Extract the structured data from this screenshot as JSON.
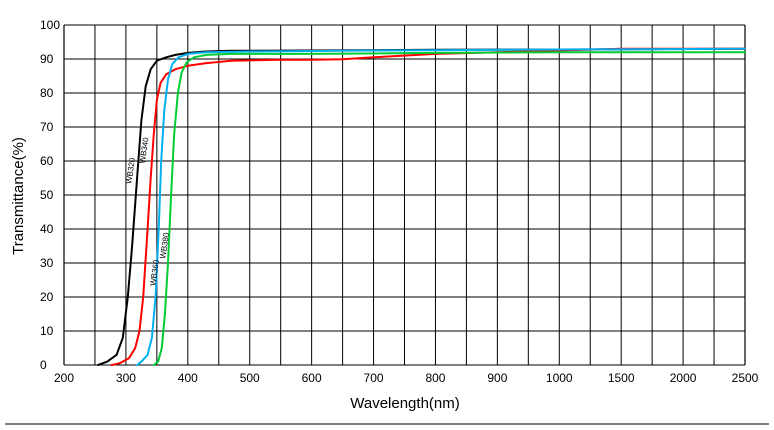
{
  "chart_data": {
    "type": "line",
    "xlabel": "Wavelength(nm)",
    "ylabel": "Transmittance(%)",
    "x_ticks": [
      "200",
      "300",
      "400",
      "500",
      "600",
      "700",
      "800",
      "900",
      "1000",
      "1500",
      "2000",
      "2500"
    ],
    "y_ticks": [
      "0",
      "10",
      "20",
      "30",
      "40",
      "50",
      "60",
      "70",
      "80",
      "90",
      "100"
    ],
    "ylim": [
      0,
      100
    ],
    "grid": true,
    "series": [
      {
        "name": "WB320",
        "color": "#000000",
        "points": [
          [
            255,
            0
          ],
          [
            270,
            1
          ],
          [
            285,
            3
          ],
          [
            295,
            8
          ],
          [
            303,
            20
          ],
          [
            310,
            35
          ],
          [
            318,
            55
          ],
          [
            325,
            72
          ],
          [
            332,
            82
          ],
          [
            340,
            87
          ],
          [
            350,
            89.5
          ],
          [
            365,
            90.5
          ],
          [
            380,
            91.2
          ],
          [
            400,
            91.8
          ],
          [
            430,
            92.2
          ],
          [
            470,
            92.4
          ],
          [
            600,
            92.5
          ],
          [
            800,
            92.7
          ],
          [
            1000,
            92.8
          ],
          [
            2500,
            93
          ]
        ]
      },
      {
        "name": "WB340",
        "color": "#ff0000",
        "points": [
          [
            277,
            0
          ],
          [
            290,
            0.5
          ],
          [
            305,
            2
          ],
          [
            315,
            5
          ],
          [
            322,
            10
          ],
          [
            328,
            20
          ],
          [
            335,
            40
          ],
          [
            340,
            55
          ],
          [
            345,
            68
          ],
          [
            350,
            78
          ],
          [
            356,
            83
          ],
          [
            365,
            85.5
          ],
          [
            380,
            87
          ],
          [
            400,
            88
          ],
          [
            430,
            88.8
          ],
          [
            470,
            89.5
          ],
          [
            550,
            89.8
          ],
          [
            600,
            89.8
          ],
          [
            650,
            89.9
          ],
          [
            700,
            90.5
          ],
          [
            800,
            91.5
          ],
          [
            900,
            92
          ],
          [
            1000,
            92.5
          ],
          [
            1500,
            93
          ],
          [
            2500,
            93
          ]
        ]
      },
      {
        "name": "WB360",
        "color": "#00b0f0",
        "points": [
          [
            318,
            0
          ],
          [
            325,
            1
          ],
          [
            335,
            3
          ],
          [
            342,
            8
          ],
          [
            348,
            20
          ],
          [
            353,
            40
          ],
          [
            357,
            60
          ],
          [
            362,
            75
          ],
          [
            368,
            84
          ],
          [
            375,
            88.5
          ],
          [
            385,
            90.5
          ],
          [
            400,
            91.5
          ],
          [
            430,
            92
          ],
          [
            500,
            92.2
          ],
          [
            700,
            92.5
          ],
          [
            1000,
            92.8
          ],
          [
            2500,
            93
          ]
        ]
      },
      {
        "name": "WB380",
        "color": "#00cc33",
        "points": [
          [
            345,
            0
          ],
          [
            352,
            1
          ],
          [
            358,
            5
          ],
          [
            363,
            15
          ],
          [
            368,
            30
          ],
          [
            373,
            50
          ],
          [
            378,
            68
          ],
          [
            384,
            80
          ],
          [
            390,
            86
          ],
          [
            398,
            89
          ],
          [
            410,
            90.5
          ],
          [
            430,
            91.2
          ],
          [
            470,
            91.5
          ],
          [
            600,
            91.5
          ],
          [
            800,
            91.8
          ],
          [
            1000,
            92
          ],
          [
            1500,
            92
          ],
          [
            2500,
            92
          ]
        ]
      }
    ]
  }
}
